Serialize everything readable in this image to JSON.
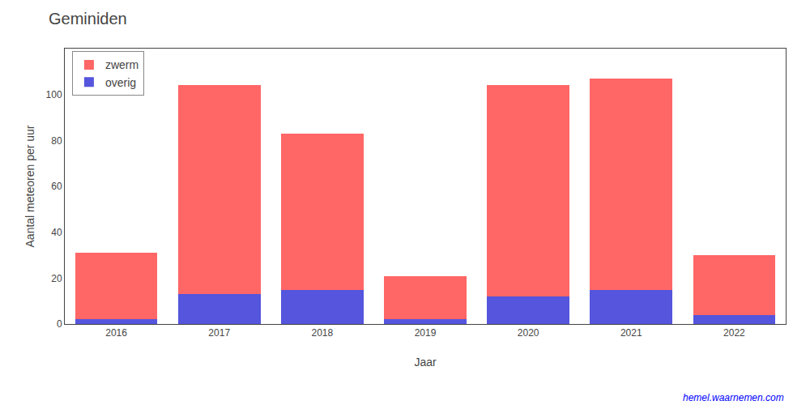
{
  "chart_data": {
    "type": "bar",
    "title": "Geminiden",
    "categories": [
      "2016",
      "2017",
      "2018",
      "2019",
      "2020",
      "2021",
      "2022"
    ],
    "series": [
      {
        "name": "overig",
        "color": "#5555dd",
        "values": [
          2,
          13,
          15,
          2,
          12,
          15,
          4
        ]
      },
      {
        "name": "zwerm",
        "color": "#ff6666",
        "values": [
          29,
          91,
          68,
          19,
          92,
          92,
          26
        ]
      }
    ],
    "stacked": true,
    "xlabel": "Jaar",
    "ylabel": "Aantal meteoren per uur",
    "ylim": [
      0,
      120
    ],
    "yticks": [
      0,
      20,
      40,
      60,
      80,
      100
    ],
    "grid": false,
    "legend": "upper left",
    "annotations": [
      {
        "text": "hemel.waarnemen.com",
        "color": "#0000ff"
      }
    ]
  }
}
